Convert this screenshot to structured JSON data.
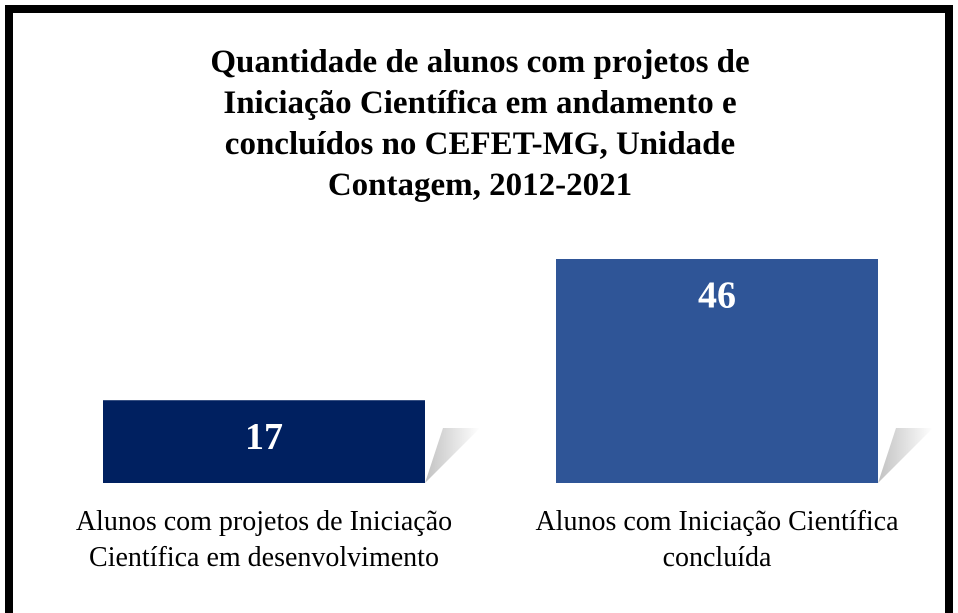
{
  "chart_data": {
    "type": "bar",
    "title": "Quantidade de alunos com projetos de Iniciação Científica em andamento e concluídos no CEFET-MG, Unidade Contagem, 2012-2021",
    "categories": [
      "Alunos com projetos de Iniciação Científica em desenvolvimento",
      "Alunos com Iniciação Científica concluída"
    ],
    "values": [
      17,
      46
    ],
    "colors": [
      "#002060",
      "#2f5597"
    ]
  }
}
